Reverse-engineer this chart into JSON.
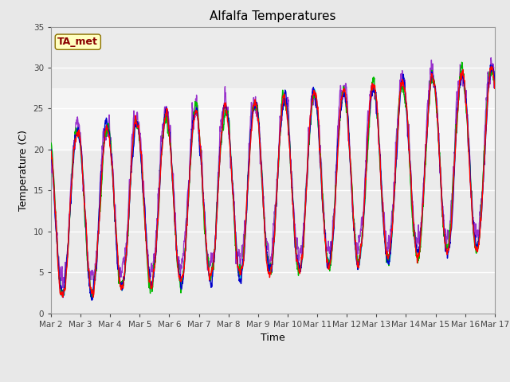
{
  "title": "Alfalfa Temperatures",
  "xlabel": "Time",
  "ylabel": "Temperature (C)",
  "annotation_text": "TA_met",
  "annotation_color": "#8B0000",
  "annotation_bg": "#FFFFC0",
  "ylim": [
    0,
    35
  ],
  "yticks": [
    0,
    5,
    10,
    15,
    20,
    25,
    30,
    35
  ],
  "x_labels": [
    "Mar 2",
    "Mar 3",
    "Mar 4",
    "Mar 5",
    "Mar 6",
    "Mar 7",
    "Mar 8",
    "Mar 9",
    "Mar 10",
    "Mar 11",
    "Mar 12",
    "Mar 13",
    "Mar 14",
    "Mar 15",
    "Mar 16",
    "Mar 17"
  ],
  "shaded_band": [
    20,
    27.5
  ],
  "series": {
    "PanelT": {
      "color": "#FF0000",
      "lw": 1.0
    },
    "HMP60": {
      "color": "#0000CC",
      "lw": 1.0
    },
    "NR01_PRT": {
      "color": "#00BB00",
      "lw": 1.0
    },
    "SonicT": {
      "color": "#9933CC",
      "lw": 1.0
    },
    "AM25T_PRT": {
      "color": "#00CCCC",
      "lw": 1.0
    }
  },
  "bg_color": "#E8E8E8",
  "plot_bg": "#EBEBEB"
}
